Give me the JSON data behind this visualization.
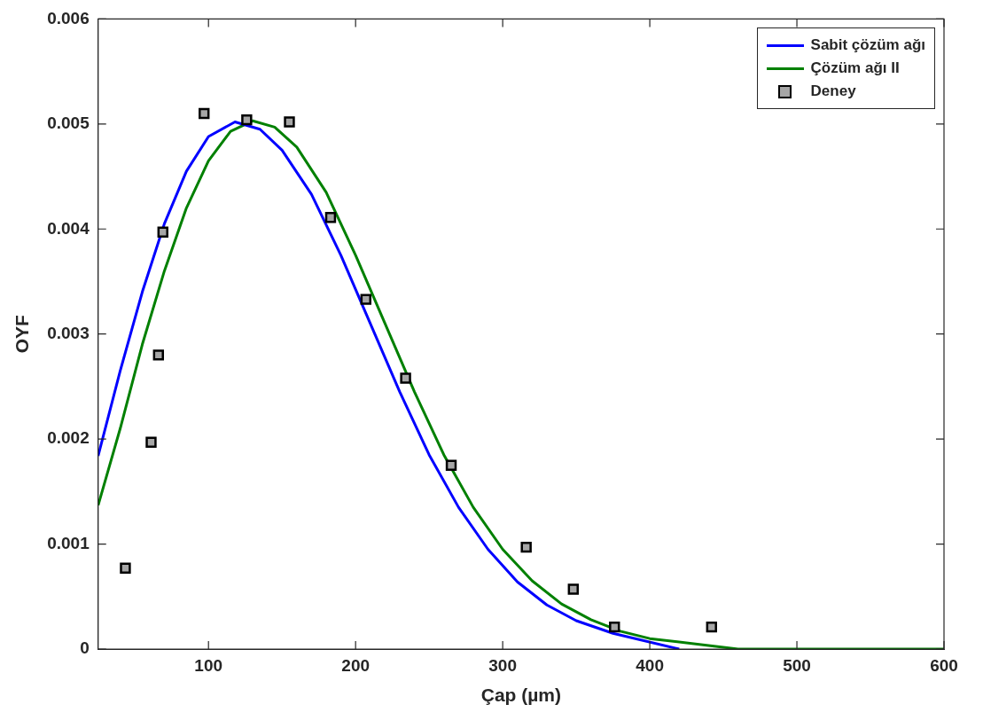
{
  "chart_data": {
    "type": "line",
    "xlabel": "Çap (µm)",
    "ylabel": "OYF",
    "xlim": [
      25,
      600
    ],
    "xticks": [
      100,
      200,
      300,
      400,
      500,
      600
    ],
    "ylim": [
      0,
      0.006
    ],
    "yticks": [
      0,
      0.001,
      0.002,
      0.003,
      0.004,
      0.005,
      0.006
    ],
    "grid": false,
    "legend": "top right",
    "line_style": "solid",
    "series": [
      {
        "name": "Sabit çözüm ağı",
        "color": "#0000ff",
        "marker": "none",
        "x": [
          25,
          40,
          55,
          70,
          85,
          100,
          118,
          135,
          150,
          170,
          190,
          210,
          230,
          250,
          270,
          290,
          310,
          330,
          350,
          375,
          420
        ],
        "values": [
          0.00184,
          0.00265,
          0.0034,
          0.00405,
          0.00455,
          0.00488,
          0.00502,
          0.00495,
          0.00475,
          0.00433,
          0.00375,
          0.0031,
          0.00245,
          0.00185,
          0.00135,
          0.00095,
          0.00064,
          0.00042,
          0.00027,
          0.00015,
          0
        ]
      },
      {
        "name": "Çözüm ağı II",
        "color": "#008000",
        "marker": "none",
        "x": [
          25,
          40,
          55,
          70,
          85,
          100,
          115,
          130,
          145,
          160,
          180,
          200,
          220,
          240,
          260,
          280,
          300,
          320,
          340,
          360,
          380,
          400,
          460,
          600
        ],
        "values": [
          0.00137,
          0.0021,
          0.0029,
          0.0036,
          0.0042,
          0.00465,
          0.00493,
          0.00503,
          0.00497,
          0.00478,
          0.00435,
          0.00375,
          0.0031,
          0.00245,
          0.00185,
          0.00135,
          0.00095,
          0.00065,
          0.00043,
          0.00028,
          0.00017,
          0.0001,
          0,
          0
        ]
      },
      {
        "name": "Deney",
        "type": "scatter",
        "color": "#a6a6a6",
        "marker": "square",
        "x": [
          43.5,
          61,
          66,
          69,
          97,
          126,
          155,
          183,
          207,
          234,
          265,
          316,
          348,
          376,
          442
        ],
        "values": [
          0.00077,
          0.00197,
          0.0028,
          0.00397,
          0.0051,
          0.00504,
          0.00502,
          0.00411,
          0.00333,
          0.00258,
          0.00175,
          0.00097,
          0.00057,
          0.00021,
          0.00021
        ]
      }
    ]
  }
}
